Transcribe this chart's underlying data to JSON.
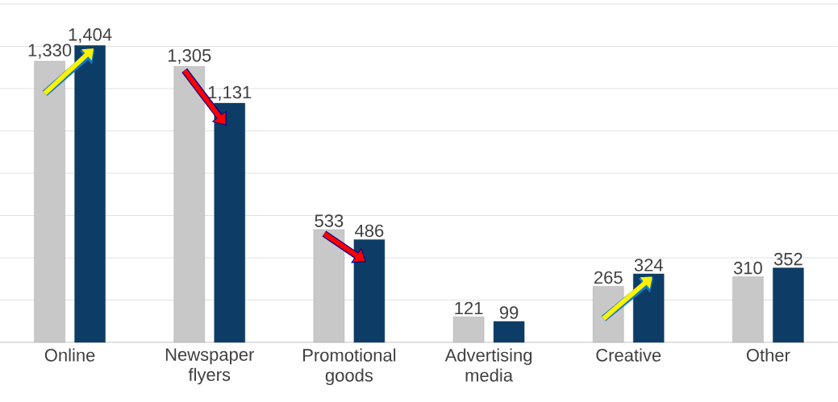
{
  "chart_data": {
    "type": "bar",
    "categories": [
      "Online",
      "Newspaper flyers",
      "Promotional goods",
      "Advertising media",
      "Creative",
      "Other"
    ],
    "series": [
      {
        "color": "#c8c8c8",
        "values": [
          1330,
          1305,
          533,
          121,
          265,
          310
        ],
        "value_labels": [
          "1,330",
          "1,305",
          "533",
          "121",
          "265",
          "310"
        ]
      },
      {
        "color": "#0d3d66",
        "values": [
          1404,
          1131,
          486,
          99,
          324,
          352
        ],
        "value_labels": [
          "1,404",
          "1,131",
          "486",
          "99",
          "324",
          "352"
        ]
      }
    ],
    "ylim": [
      0,
      1600
    ],
    "yticks": [
      {
        "value": 0,
        "label": null
      },
      {
        "value": 200,
        "label": null
      },
      {
        "value": 400,
        "label": null
      },
      {
        "value": 600,
        "label": null
      },
      {
        "value": 800,
        "label": null
      },
      {
        "value": 1000,
        "label": null
      },
      {
        "value": 1200,
        "label": null
      },
      {
        "value": 1400,
        "label": null
      },
      {
        "value": 1600,
        "label": null
      }
    ],
    "grid": "y"
  }
}
